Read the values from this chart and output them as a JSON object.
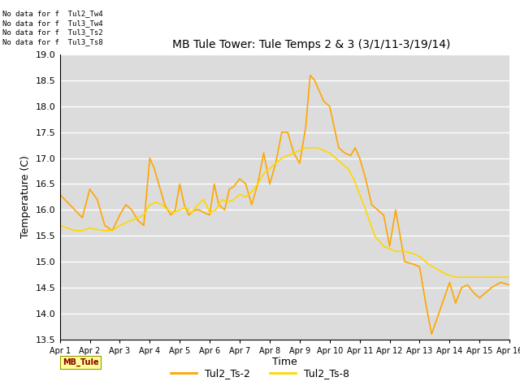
{
  "title": "MB Tule Tower: Tule Temps 2 & 3 (3/1/11-3/19/14)",
  "xlabel": "Time",
  "ylabel": "Temperature (C)",
  "xlim": [
    0,
    15
  ],
  "ylim": [
    13.5,
    19.0
  ],
  "yticks": [
    13.5,
    14.0,
    14.5,
    15.0,
    15.5,
    16.0,
    16.5,
    17.0,
    17.5,
    18.0,
    18.5,
    19.0
  ],
  "xtick_labels": [
    "Apr 1",
    "Apr 2",
    "Apr 3",
    "Apr 4",
    "Apr 5",
    "Apr 6",
    "Apr 7",
    "Apr 8",
    "Apr 9",
    "Apr 10",
    "Apr 11",
    "Apr 12",
    "Apr 13",
    "Apr 14",
    "Apr 15",
    "Apr 16"
  ],
  "legend_labels": [
    "Tul2_Ts-2",
    "Tul2_Ts-8"
  ],
  "legend_colors": [
    "#FFA500",
    "#FFD700"
  ],
  "bg_color": "#DCDCDC",
  "no_data_lines": [
    "No data for f  Tul2_Tw4",
    "No data for f  Tul3_Tw4",
    "No data for f  Tul3_Ts2",
    "No data for f  Tul3_Ts8"
  ],
  "tooltip_text": "MB_Tule",
  "ts2_x": [
    0,
    0.25,
    0.5,
    0.75,
    1.0,
    1.25,
    1.5,
    1.75,
    2.0,
    2.2,
    2.4,
    2.6,
    2.8,
    3.0,
    3.15,
    3.3,
    3.5,
    3.7,
    3.85,
    4.0,
    4.15,
    4.3,
    4.5,
    4.65,
    4.8,
    5.0,
    5.15,
    5.3,
    5.5,
    5.65,
    5.8,
    6.0,
    6.2,
    6.4,
    6.6,
    6.8,
    7.0,
    7.2,
    7.4,
    7.6,
    7.8,
    8.0,
    8.2,
    8.35,
    8.5,
    8.65,
    8.8,
    9.0,
    9.15,
    9.3,
    9.5,
    9.7,
    9.85,
    10.0,
    10.2,
    10.4,
    10.6,
    10.8,
    11.0,
    11.2,
    11.5,
    11.8,
    12.0,
    12.2,
    12.4,
    12.7,
    13.0,
    13.2,
    13.4,
    13.6,
    13.8,
    14.0,
    14.2,
    14.4,
    14.7,
    15.0
  ],
  "ts2_y": [
    16.3,
    16.15,
    16.0,
    15.85,
    16.4,
    16.2,
    15.7,
    15.6,
    15.9,
    16.1,
    16.0,
    15.8,
    15.7,
    17.0,
    16.8,
    16.5,
    16.1,
    15.9,
    16.0,
    16.5,
    16.1,
    15.9,
    16.0,
    16.0,
    15.95,
    15.9,
    16.5,
    16.1,
    16.0,
    16.4,
    16.45,
    16.6,
    16.5,
    16.1,
    16.5,
    17.1,
    16.5,
    16.9,
    17.5,
    17.5,
    17.1,
    16.9,
    17.6,
    18.6,
    18.5,
    18.3,
    18.1,
    18.0,
    17.6,
    17.2,
    17.1,
    17.05,
    17.2,
    17.0,
    16.6,
    16.1,
    16.0,
    15.9,
    15.3,
    16.0,
    15.0,
    14.95,
    14.9,
    14.2,
    13.6,
    14.1,
    14.6,
    14.2,
    14.5,
    14.55,
    14.4,
    14.3,
    14.4,
    14.5,
    14.6,
    14.55
  ],
  "ts8_x": [
    0,
    0.25,
    0.5,
    0.75,
    1.0,
    1.25,
    1.5,
    1.75,
    2.0,
    2.2,
    2.4,
    2.6,
    2.8,
    3.0,
    3.2,
    3.4,
    3.6,
    3.8,
    4.0,
    4.2,
    4.4,
    4.6,
    4.8,
    5.0,
    5.2,
    5.4,
    5.6,
    5.8,
    6.0,
    6.2,
    6.4,
    6.6,
    6.8,
    7.0,
    7.2,
    7.4,
    7.6,
    7.8,
    8.0,
    8.2,
    8.4,
    8.6,
    8.8,
    9.0,
    9.2,
    9.4,
    9.6,
    9.8,
    10.0,
    10.2,
    10.5,
    10.8,
    11.0,
    11.2,
    11.5,
    11.8,
    12.0,
    12.3,
    12.6,
    12.9,
    13.2,
    13.5,
    13.8,
    14.0,
    14.2,
    14.5,
    14.8,
    15.0
  ],
  "ts8_y": [
    15.7,
    15.65,
    15.6,
    15.6,
    15.65,
    15.62,
    15.6,
    15.6,
    15.7,
    15.75,
    15.8,
    15.85,
    15.9,
    16.1,
    16.15,
    16.1,
    16.0,
    15.95,
    16.0,
    16.05,
    15.95,
    16.1,
    16.2,
    15.95,
    16.0,
    16.2,
    16.15,
    16.2,
    16.3,
    16.25,
    16.35,
    16.5,
    16.7,
    16.8,
    16.9,
    17.0,
    17.05,
    17.1,
    17.15,
    17.2,
    17.2,
    17.2,
    17.15,
    17.1,
    17.0,
    16.9,
    16.8,
    16.6,
    16.3,
    16.0,
    15.5,
    15.3,
    15.25,
    15.2,
    15.2,
    15.15,
    15.1,
    14.95,
    14.85,
    14.75,
    14.7,
    14.7,
    14.7,
    14.7,
    14.7,
    14.7,
    14.7,
    14.7
  ]
}
